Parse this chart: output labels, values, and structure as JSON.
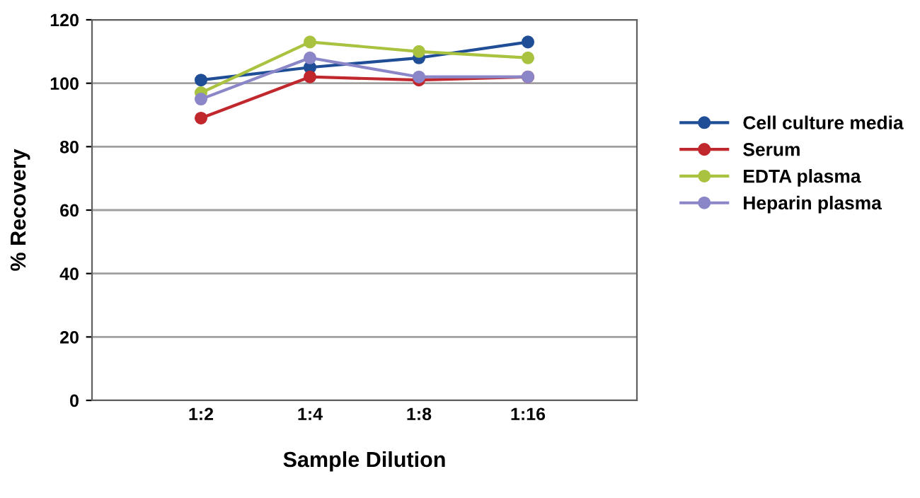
{
  "chart_data": {
    "type": "line",
    "xlabel": "Sample Dilution",
    "ylabel": "% Recovery",
    "categories": [
      "1:2",
      "1:4",
      "1:8",
      "1:16"
    ],
    "series": [
      {
        "name": "Cell culture media",
        "color": "#1f4e96",
        "values": [
          101,
          105,
          108,
          113
        ]
      },
      {
        "name": "Serum",
        "color": "#c0282d",
        "values": [
          89,
          102,
          101,
          102
        ]
      },
      {
        "name": "EDTA plasma",
        "color": "#a9c23f",
        "values": [
          97,
          113,
          110,
          108
        ]
      },
      {
        "name": "Heparin plasma",
        "color": "#8b86c8",
        "values": [
          95,
          108,
          102,
          102
        ]
      }
    ],
    "ylim": [
      0,
      120
    ],
    "yticks": [
      0,
      20,
      40,
      60,
      80,
      100,
      120
    ],
    "grid": "y",
    "legend": "right",
    "marker": "circle",
    "line_style": "solid"
  }
}
